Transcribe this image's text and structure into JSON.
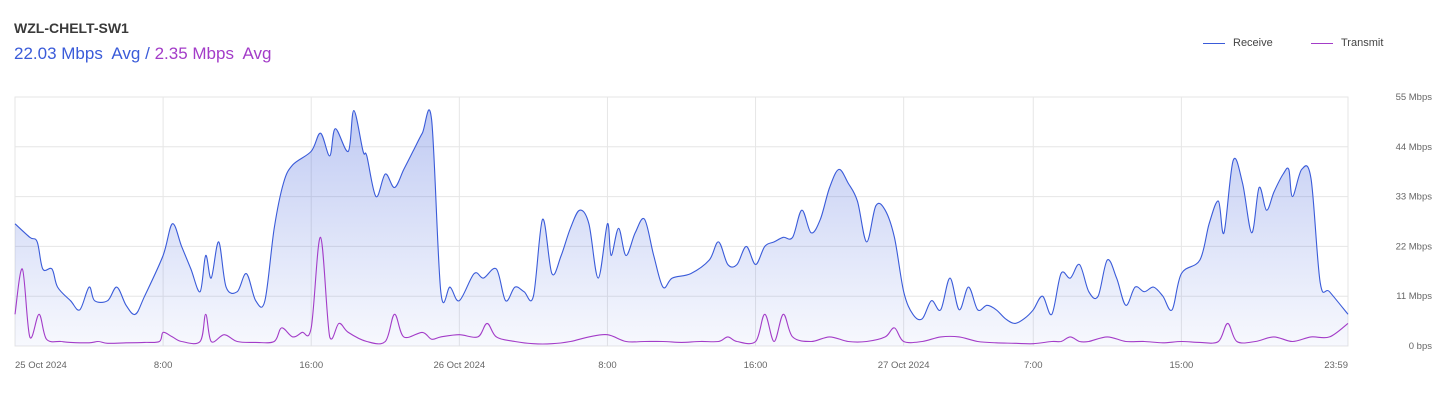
{
  "device_title": "WZL-CHELT-SW1",
  "summary": {
    "receive_avg": "22.03 Mbps",
    "receive_avg_label": "Avg",
    "separator": "/",
    "transmit_avg": "2.35 Mbps",
    "transmit_avg_label": "Avg"
  },
  "colors": {
    "receive": "#3a5bd9",
    "transmit": "#a33cc8",
    "grid": "#e6e6e6"
  },
  "chart_data": {
    "type": "area",
    "title": "WZL-CHELT-SW1",
    "x_range": [
      "25 Oct 2024 00:00",
      "27 Oct 2024 23:59"
    ],
    "x_ticks": [
      "25 Oct 2024",
      "8:00",
      "16:00",
      "26 Oct 2024",
      "8:00",
      "16:00",
      "27 Oct 2024",
      "7:00",
      "15:00",
      "23:59"
    ],
    "x_tick_hours": [
      0,
      8,
      16,
      24,
      32,
      40,
      48,
      55,
      63,
      72
    ],
    "y_ticks": [
      "0 bps",
      "11 Mbps",
      "22 Mbps",
      "33 Mbps",
      "44 Mbps",
      "55 Mbps"
    ],
    "ylim": [
      0,
      55
    ],
    "y_unit": "Mbps",
    "legend_position": "top-right",
    "grid": true,
    "series": [
      {
        "name": "Receive",
        "color": "#3a5bd9",
        "points": [
          [
            0,
            27
          ],
          [
            0.8,
            24
          ],
          [
            1.2,
            23
          ],
          [
            1.5,
            17
          ],
          [
            2,
            17
          ],
          [
            2.3,
            13
          ],
          [
            3,
            10
          ],
          [
            3.5,
            8
          ],
          [
            4,
            13
          ],
          [
            4.3,
            10
          ],
          [
            5,
            10
          ],
          [
            5.5,
            13
          ],
          [
            6,
            9
          ],
          [
            6.5,
            7
          ],
          [
            7,
            11
          ],
          [
            8,
            20
          ],
          [
            8.5,
            27
          ],
          [
            9,
            22
          ],
          [
            9.5,
            17
          ],
          [
            10,
            12
          ],
          [
            10.3,
            20
          ],
          [
            10.6,
            15
          ],
          [
            11,
            23
          ],
          [
            11.4,
            13
          ],
          [
            12,
            12
          ],
          [
            12.5,
            16
          ],
          [
            13,
            10
          ],
          [
            13.5,
            10
          ],
          [
            14,
            26
          ],
          [
            14.5,
            36
          ],
          [
            15,
            40
          ],
          [
            16,
            43
          ],
          [
            16.5,
            47
          ],
          [
            17,
            42
          ],
          [
            17.3,
            48
          ],
          [
            18,
            43
          ],
          [
            18.3,
            52
          ],
          [
            18.8,
            43
          ],
          [
            19,
            42
          ],
          [
            19.5,
            33
          ],
          [
            20,
            38
          ],
          [
            20.5,
            35
          ],
          [
            21,
            39
          ],
          [
            21.5,
            43
          ],
          [
            22,
            47
          ],
          [
            22.5,
            50
          ],
          [
            23,
            12
          ],
          [
            23.5,
            13
          ],
          [
            24,
            10
          ],
          [
            24.8,
            16
          ],
          [
            25.3,
            15
          ],
          [
            26,
            17
          ],
          [
            26.5,
            10
          ],
          [
            27,
            13
          ],
          [
            27.5,
            12
          ],
          [
            28,
            11
          ],
          [
            28.5,
            28
          ],
          [
            29,
            16
          ],
          [
            29.5,
            20
          ],
          [
            30,
            26
          ],
          [
            30.5,
            30
          ],
          [
            31,
            27
          ],
          [
            31.5,
            15
          ],
          [
            32,
            27
          ],
          [
            32.2,
            20
          ],
          [
            32.6,
            26
          ],
          [
            33,
            20
          ],
          [
            33.5,
            25
          ],
          [
            34,
            28
          ],
          [
            34.5,
            20
          ],
          [
            35,
            13
          ],
          [
            35.5,
            15
          ],
          [
            36.5,
            16
          ],
          [
            37.5,
            19
          ],
          [
            38,
            23
          ],
          [
            38.5,
            18
          ],
          [
            39,
            18
          ],
          [
            39.5,
            22
          ],
          [
            40,
            18
          ],
          [
            40.5,
            22
          ],
          [
            41,
            23
          ],
          [
            41.5,
            24
          ],
          [
            42,
            24
          ],
          [
            42.5,
            30
          ],
          [
            43,
            25
          ],
          [
            43.5,
            28
          ],
          [
            44,
            35
          ],
          [
            44.5,
            39
          ],
          [
            45,
            36
          ],
          [
            45.5,
            32
          ],
          [
            46,
            23
          ],
          [
            46.5,
            31
          ],
          [
            47,
            30
          ],
          [
            47.5,
            24
          ],
          [
            48,
            12
          ],
          [
            48.5,
            7
          ],
          [
            49,
            6
          ],
          [
            49.5,
            10
          ],
          [
            50,
            8
          ],
          [
            50.5,
            15
          ],
          [
            51,
            8
          ],
          [
            51.5,
            13
          ],
          [
            52,
            8
          ],
          [
            52.5,
            9
          ],
          [
            53,
            8
          ],
          [
            53.5,
            6
          ],
          [
            54,
            5
          ],
          [
            54.5,
            6
          ],
          [
            55,
            8
          ],
          [
            55.5,
            11
          ],
          [
            56,
            7
          ],
          [
            56.5,
            16
          ],
          [
            57,
            15
          ],
          [
            57.5,
            18
          ],
          [
            58,
            12
          ],
          [
            58.5,
            11
          ],
          [
            59,
            19
          ],
          [
            59.5,
            15
          ],
          [
            60,
            9
          ],
          [
            60.5,
            13
          ],
          [
            61,
            12
          ],
          [
            61.5,
            13
          ],
          [
            62,
            11
          ],
          [
            62.5,
            8
          ],
          [
            63,
            16
          ],
          [
            64,
            19
          ],
          [
            64.5,
            27
          ],
          [
            65,
            32
          ],
          [
            65.3,
            25
          ],
          [
            65.8,
            41
          ],
          [
            66.3,
            36
          ],
          [
            66.8,
            25
          ],
          [
            67.2,
            35
          ],
          [
            67.6,
            30
          ],
          [
            68,
            34
          ],
          [
            68.5,
            38
          ],
          [
            68.8,
            39
          ],
          [
            69,
            33
          ],
          [
            69.5,
            39
          ],
          [
            70,
            37
          ],
          [
            70.5,
            14
          ],
          [
            71,
            12
          ],
          [
            72,
            7
          ]
        ]
      },
      {
        "name": "Transmit",
        "color": "#a33cc8",
        "points": [
          [
            0,
            7
          ],
          [
            0.4,
            17
          ],
          [
            0.8,
            2
          ],
          [
            1.3,
            7
          ],
          [
            1.7,
            1.5
          ],
          [
            2.5,
            1
          ],
          [
            3,
            0.8
          ],
          [
            4,
            0.7
          ],
          [
            4.5,
            1
          ],
          [
            5,
            0.6
          ],
          [
            6,
            0.7
          ],
          [
            7,
            0.8
          ],
          [
            7.8,
            1
          ],
          [
            8,
            3
          ],
          [
            8.5,
            2
          ],
          [
            9,
            1
          ],
          [
            10,
            1
          ],
          [
            10.3,
            7
          ],
          [
            10.6,
            1
          ],
          [
            11.3,
            2.5
          ],
          [
            12,
            1
          ],
          [
            13,
            0.8
          ],
          [
            14,
            1
          ],
          [
            14.4,
            4
          ],
          [
            15,
            2
          ],
          [
            15.5,
            3
          ],
          [
            16,
            4
          ],
          [
            16.5,
            24
          ],
          [
            17,
            2
          ],
          [
            17.5,
            5
          ],
          [
            18,
            3
          ],
          [
            19,
            1
          ],
          [
            20,
            1
          ],
          [
            20.5,
            7
          ],
          [
            21,
            2
          ],
          [
            22,
            3
          ],
          [
            22.5,
            1.5
          ],
          [
            23,
            2
          ],
          [
            24,
            2.5
          ],
          [
            25,
            2
          ],
          [
            25.5,
            5
          ],
          [
            26,
            2
          ],
          [
            27,
            1
          ],
          [
            28,
            0.5
          ],
          [
            29,
            0.5
          ],
          [
            30,
            1
          ],
          [
            31,
            2
          ],
          [
            32,
            2.5
          ],
          [
            33,
            1
          ],
          [
            34,
            1
          ],
          [
            35,
            1
          ],
          [
            36,
            0.8
          ],
          [
            37,
            1
          ],
          [
            38,
            1
          ],
          [
            38.5,
            2
          ],
          [
            39,
            1
          ],
          [
            40,
            1
          ],
          [
            40.5,
            7
          ],
          [
            41,
            1
          ],
          [
            41.5,
            7
          ],
          [
            42,
            2
          ],
          [
            43,
            1
          ],
          [
            44,
            2
          ],
          [
            45,
            1
          ],
          [
            46,
            1
          ],
          [
            47,
            2
          ],
          [
            47.5,
            4
          ],
          [
            48,
            1
          ],
          [
            49,
            1
          ],
          [
            50,
            2
          ],
          [
            51,
            2
          ],
          [
            52,
            1
          ],
          [
            53,
            0.7
          ],
          [
            54,
            0.6
          ],
          [
            55,
            0.5
          ],
          [
            56,
            1
          ],
          [
            56.5,
            1
          ],
          [
            57,
            2
          ],
          [
            57.5,
            1
          ],
          [
            58,
            1
          ],
          [
            59,
            2
          ],
          [
            60,
            1
          ],
          [
            61,
            1
          ],
          [
            62,
            0.7
          ],
          [
            63,
            1
          ],
          [
            64,
            0.8
          ],
          [
            65,
            1
          ],
          [
            65.5,
            5
          ],
          [
            66,
            1
          ],
          [
            67,
            1
          ],
          [
            68,
            2
          ],
          [
            69,
            1
          ],
          [
            70,
            2
          ],
          [
            71,
            2
          ],
          [
            72,
            5
          ]
        ]
      }
    ]
  }
}
